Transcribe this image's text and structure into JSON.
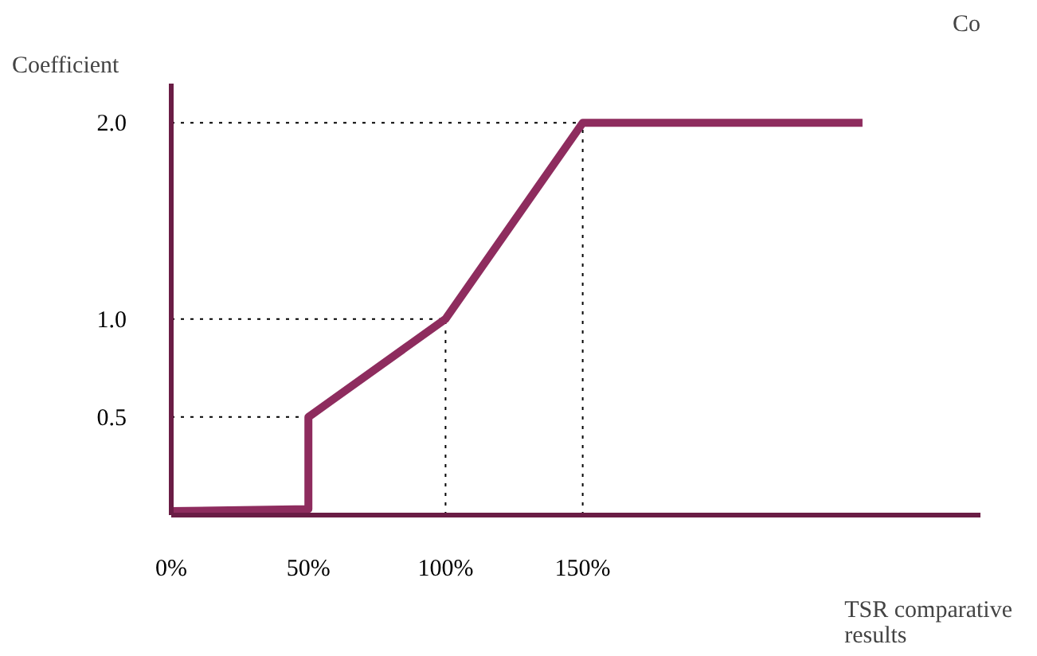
{
  "chart_data": {
    "type": "line",
    "ylabel": "Coefficient",
    "xlabel": "TSR comparative results",
    "x": [
      0,
      50,
      50,
      100,
      150,
      252
    ],
    "series": [
      {
        "color": "#8e2c5e",
        "values": [
          0.02,
          0.03,
          0.5,
          1.0,
          2.0,
          2.0
        ]
      }
    ],
    "xlim": [
      0,
      295
    ],
    "ylim": [
      0,
      2.2
    ],
    "xticks": [
      {
        "value": 0,
        "label": "0%"
      },
      {
        "value": 50,
        "label": "50%"
      },
      {
        "value": 100,
        "label": "100%"
      },
      {
        "value": 150,
        "label": "150%"
      }
    ],
    "yticks": [
      {
        "value": 0.5,
        "label": "0.5"
      },
      {
        "value": 1.0,
        "label": "1.0"
      },
      {
        "value": 2.0,
        "label": "2.0"
      }
    ],
    "ref_lines": [
      {
        "axis": "y",
        "value": 0.5,
        "line_style": "dotted"
      },
      {
        "axis": "y",
        "value": 1.0,
        "line_style": "dotted"
      },
      {
        "axis": "y",
        "value": 2.0,
        "line_style": "dotted"
      },
      {
        "axis": "x",
        "value": 100,
        "line_style": "dotted"
      },
      {
        "axis": "x",
        "value": 150,
        "line_style": "dotted"
      }
    ],
    "annotations": [
      "Co"
    ],
    "grid": false,
    "marker": "none",
    "line_style": "solid"
  }
}
